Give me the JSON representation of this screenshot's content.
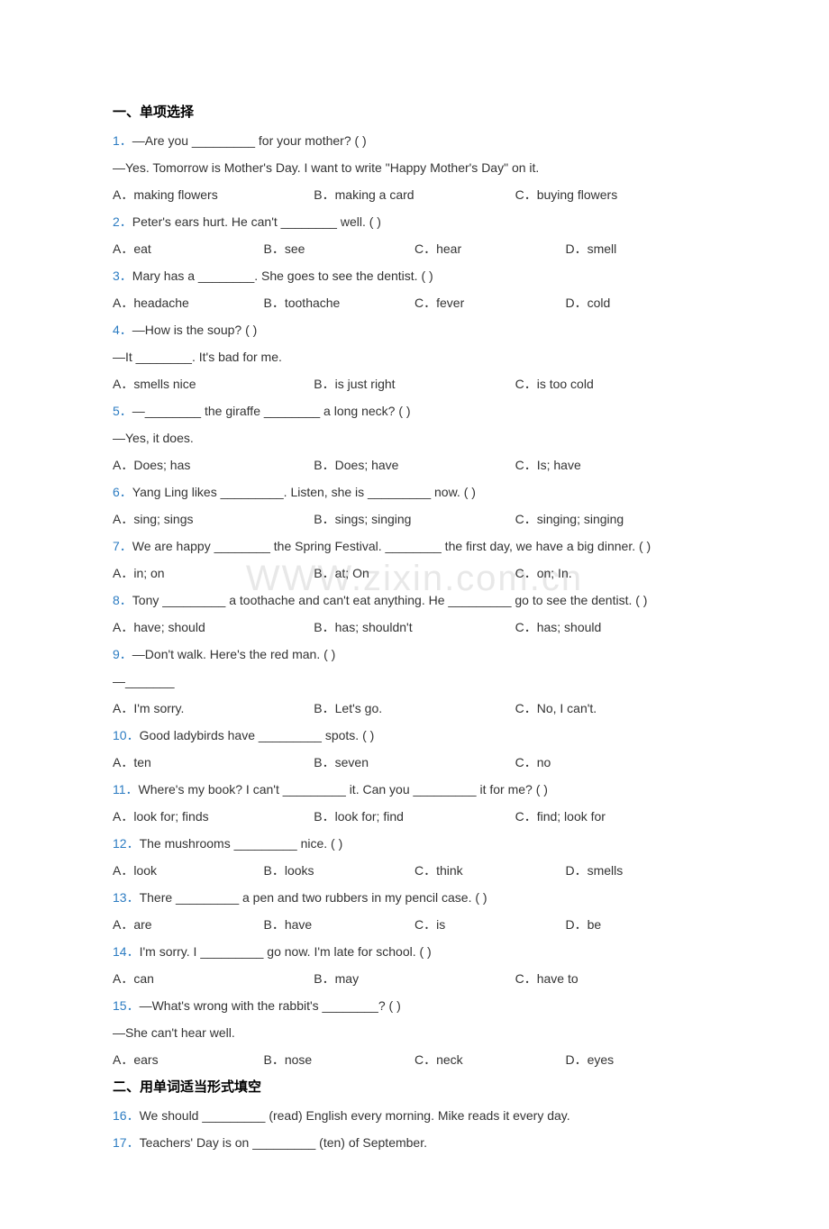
{
  "watermark": "WWW.zixin.com.cn",
  "sections": {
    "s1": {
      "title": "一、单项选择",
      "questions": [
        {
          "num": "1",
          "prompt": "—Are you _________ for your mother? (    )",
          "followup": "—Yes. Tomorrow is Mother's Day. I want to write \"Happy Mother's Day\" on it.",
          "layout": 3,
          "opts": [
            "A．making flowers",
            "B．making a card",
            "C．buying flowers"
          ]
        },
        {
          "num": "2",
          "prompt": "Peter's ears hurt. He can't ________ well. (    )",
          "layout": 4,
          "opts": [
            "A．eat",
            "B．see",
            "C．hear",
            "D．smell"
          ]
        },
        {
          "num": "3",
          "prompt": "Mary has a ________. She goes to see the dentist. (    )",
          "layout": 4,
          "opts": [
            "A．headache",
            "B．toothache",
            "C．fever",
            "D．cold"
          ]
        },
        {
          "num": "4",
          "prompt": "—How is the soup? (    )",
          "followup": "—It ________. It's bad for me.",
          "layout": 3,
          "opts": [
            "A．smells nice",
            "B．is just right",
            "C．is too cold"
          ]
        },
        {
          "num": "5",
          "prompt": "—________ the giraffe ________ a long neck? (    )",
          "followup": "—Yes, it does.",
          "layout": 3,
          "opts": [
            "A．Does; has",
            "B．Does; have",
            "C．Is; have"
          ]
        },
        {
          "num": "6",
          "prompt": "Yang Ling likes _________. Listen, she is _________ now. (      )",
          "layout": 3,
          "opts": [
            "A．sing; sings",
            "B．sings; singing",
            "C．singing; singing"
          ]
        },
        {
          "num": "7",
          "prompt": "We are happy ________ the Spring Festival. ________ the first day, we have a big dinner. (      )",
          "layout": 3,
          "opts": [
            "A．in; on",
            "B．at; On",
            "C．on; In."
          ]
        },
        {
          "num": "8",
          "prompt": "Tony _________ a toothache and can't eat anything. He _________ go to see the dentist. (      )",
          "layout": 3,
          "opts": [
            "A．have; should",
            "B．has; shouldn't",
            "C．has; should"
          ]
        },
        {
          "num": "9",
          "prompt": "—Don't walk. Here's the red man. (    )",
          "followup": "—_______",
          "layout": 3,
          "opts": [
            "A．I'm sorry.",
            "B．Let's go.",
            "C．No, I can't."
          ]
        },
        {
          "num": "10",
          "prompt": "Good ladybirds have _________ spots. (    )",
          "layout": 3,
          "opts": [
            "A．ten",
            "B．seven",
            "C．no"
          ]
        },
        {
          "num": "11",
          "prompt": "Where's my book? I can't _________ it. Can you _________ it for me? (      )",
          "layout": 3,
          "opts": [
            "A．look for; finds",
            "B．look for; find",
            "C．find; look for"
          ]
        },
        {
          "num": "12",
          "prompt": "The mushrooms _________ nice. (    )",
          "layout": 4,
          "opts": [
            "A．look",
            "B．looks",
            "C．think",
            "D．smells"
          ]
        },
        {
          "num": "13",
          "prompt": "There _________ a pen and two rubbers in my pencil case. (    )",
          "layout": 4,
          "opts": [
            "A．are",
            "B．have",
            "C．is",
            "D．be"
          ]
        },
        {
          "num": "14",
          "prompt": "I'm sorry. I _________ go now. I'm late for school. (    )",
          "layout": 3,
          "opts": [
            "A．can",
            "B．may",
            "C．have to"
          ]
        },
        {
          "num": "15",
          "prompt": "—What's wrong with the rabbit's ________? (    )",
          "followup": "—She can't hear well.",
          "layout": 4,
          "opts": [
            "A．ears",
            "B．nose",
            "C．neck",
            "D．eyes"
          ]
        }
      ]
    },
    "s2": {
      "title": "二、用单词适当形式填空",
      "fills": [
        {
          "num": "16",
          "text": "We should _________ (read) English every morning. Mike reads it every day."
        },
        {
          "num": "17",
          "text": "Teachers' Day is on _________ (ten) of September."
        }
      ]
    }
  }
}
